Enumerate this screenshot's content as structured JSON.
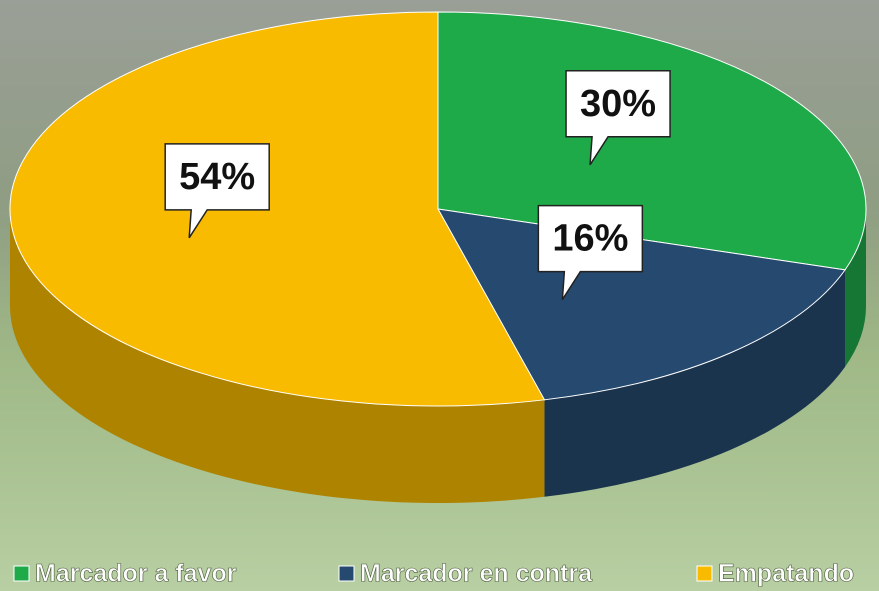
{
  "chart_data": {
    "type": "pie3d",
    "categories": [
      "Marcador a favor",
      "Marcador en contra",
      "Empatando"
    ],
    "values": [
      30,
      16,
      54
    ],
    "value_labels": [
      "30%",
      "16%",
      "54%"
    ],
    "colors": [
      "#1faa4a",
      "#264a6f",
      "#f8bb00"
    ],
    "legend": "bottom"
  }
}
